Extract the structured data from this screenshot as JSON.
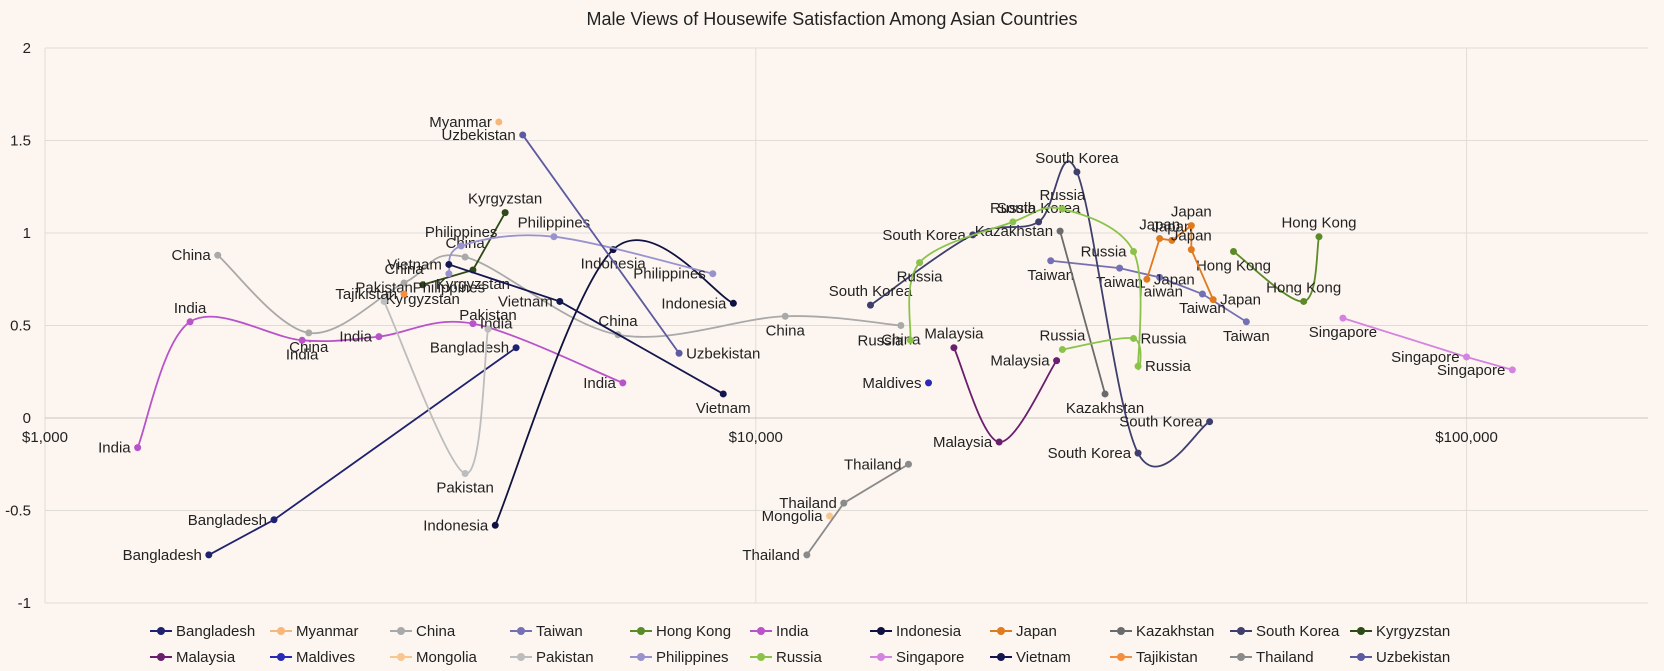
{
  "chart_data": {
    "type": "scatter",
    "title": "Male Views of Housewife Satisfaction Among Asian Countries",
    "xscale": "log",
    "xlim": [
      1000,
      180000
    ],
    "ylim": [
      -1,
      2
    ],
    "xticks": [
      {
        "v": 1000,
        "label": "$1,000"
      },
      {
        "v": 10000,
        "label": "$10,000"
      },
      {
        "v": 100000,
        "label": "$100,000"
      }
    ],
    "yticks": [
      {
        "v": -1,
        "label": "-1"
      },
      {
        "v": -0.5,
        "label": "-0.5"
      },
      {
        "v": 0,
        "label": "0"
      },
      {
        "v": 0.5,
        "label": "0.5"
      },
      {
        "v": 1,
        "label": "1"
      },
      {
        "v": 1.5,
        "label": "1.5"
      },
      {
        "v": 2,
        "label": "2"
      }
    ],
    "series": [
      {
        "name": "Bangladesh",
        "color": "#1f2270",
        "smooth": false,
        "points": [
          [
            1700,
            -0.74
          ],
          [
            2100,
            -0.55
          ],
          [
            4600,
            0.38
          ]
        ],
        "labels": [
          "Bangladesh",
          "Bangladesh",
          "Bangladesh"
        ],
        "label_side": [
          "left",
          "left",
          "left"
        ]
      },
      {
        "name": "Myanmar",
        "color": "#f7b77a",
        "smooth": false,
        "points": [
          [
            4350,
            1.6
          ]
        ],
        "labels": [
          "Myanmar"
        ],
        "label_side": [
          "left"
        ]
      },
      {
        "name": "China",
        "color": "#a9a9a9",
        "smooth": true,
        "points": [
          [
            1750,
            0.88
          ],
          [
            2350,
            0.46
          ],
          [
            3200,
            0.73
          ],
          [
            3900,
            0.87
          ],
          [
            6400,
            0.45
          ],
          [
            11000,
            0.55
          ],
          [
            16000,
            0.5
          ]
        ],
        "labels": [
          "China",
          "China",
          "China",
          "China",
          "China",
          "China",
          "China"
        ],
        "label_side": [
          "left",
          "below",
          "above",
          "above",
          "above",
          "below",
          "below"
        ]
      },
      {
        "name": "Taiwan",
        "color": "#7570b3",
        "smooth": false,
        "points": [
          [
            26000,
            0.85
          ],
          [
            32500,
            0.81
          ],
          [
            37000,
            0.76
          ],
          [
            42500,
            0.67
          ],
          [
            49000,
            0.52
          ]
        ],
        "labels": [
          "Taiwan",
          "Taiwan",
          "Taiwan",
          "Taiwan",
          "Taiwan"
        ],
        "label_side": [
          "below",
          "below",
          "below",
          "below",
          "below"
        ]
      },
      {
        "name": "Hong Kong",
        "color": "#5b8a28",
        "smooth": true,
        "points": [
          [
            47000,
            0.9
          ],
          [
            59000,
            0.63
          ],
          [
            62000,
            0.98
          ]
        ],
        "labels": [
          "Hong Kong",
          "Hong Kong",
          "Hong Kong"
        ],
        "label_side": [
          "below",
          "above",
          "above"
        ]
      },
      {
        "name": "India",
        "color": "#b853c9",
        "smooth": true,
        "points": [
          [
            1350,
            -0.16
          ],
          [
            1600,
            0.52
          ],
          [
            2300,
            0.42
          ],
          [
            2950,
            0.44
          ],
          [
            4000,
            0.51
          ],
          [
            6500,
            0.19
          ]
        ],
        "labels": [
          "India",
          "India",
          "India",
          "India",
          "India",
          "India"
        ],
        "label_side": [
          "left",
          "above",
          "below",
          "left",
          "right",
          "left"
        ]
      },
      {
        "name": "Indonesia",
        "color": "#0f1240",
        "smooth": true,
        "points": [
          [
            4300,
            -0.58
          ],
          [
            6300,
            0.91
          ],
          [
            9300,
            0.62
          ]
        ],
        "labels": [
          "Indonesia",
          "Indonesia",
          "Indonesia"
        ],
        "label_side": [
          "left",
          "below",
          "left"
        ]
      },
      {
        "name": "Japan",
        "color": "#e07a1f",
        "smooth": false,
        "points": [
          [
            35500,
            0.75
          ],
          [
            37000,
            0.97
          ],
          [
            38500,
            0.96
          ],
          [
            41000,
            1.04
          ],
          [
            41000,
            0.91
          ],
          [
            44000,
            0.64
          ]
        ],
        "labels": [
          "Japan",
          "Japan",
          "Japan",
          "Japan",
          "Japan",
          "Japan"
        ],
        "label_side": [
          "right",
          "above",
          "above",
          "above",
          "above",
          "right"
        ]
      },
      {
        "name": "Kazakhstan",
        "color": "#6b6b6b",
        "smooth": false,
        "points": [
          [
            26800,
            1.01
          ],
          [
            31000,
            0.13
          ]
        ],
        "labels": [
          "Kazakhstan",
          "Kazakhstan"
        ],
        "label_side": [
          "left",
          "below"
        ]
      },
      {
        "name": "South Korea",
        "color": "#3f3f6e",
        "smooth": true,
        "points": [
          [
            14500,
            0.61
          ],
          [
            20200,
            0.99
          ],
          [
            25000,
            1.06
          ],
          [
            28300,
            1.33
          ],
          [
            34500,
            -0.19
          ],
          [
            43500,
            -0.02
          ]
        ],
        "labels": [
          "South Korea",
          "South Korea",
          "South Korea",
          "South Korea",
          "South Korea",
          "South Korea"
        ],
        "label_side": [
          "above",
          "left",
          "above",
          "above",
          "left",
          "left"
        ]
      },
      {
        "name": "Kyrgyzstan",
        "color": "#2f4a19",
        "smooth": false,
        "points": [
          [
            3400,
            0.72
          ],
          [
            4000,
            0.8
          ],
          [
            4440,
            1.11
          ]
        ],
        "labels": [
          "Kyrgyzstan",
          "Kyrgyzstan",
          "Kyrgyzstan"
        ],
        "label_side": [
          "below",
          "below",
          "above"
        ]
      },
      {
        "name": "Malaysia",
        "color": "#6a1f6e",
        "smooth": true,
        "points": [
          [
            19000,
            0.38
          ],
          [
            22000,
            -0.13
          ],
          [
            26500,
            0.31
          ]
        ],
        "labels": [
          "Malaysia",
          "Malaysia",
          "Malaysia"
        ],
        "label_side": [
          "above",
          "left",
          "left"
        ]
      },
      {
        "name": "Maldives",
        "color": "#2a2ab8",
        "smooth": false,
        "points": [
          [
            17500,
            0.19
          ]
        ],
        "labels": [
          "Maldives"
        ],
        "label_side": [
          "left"
        ]
      },
      {
        "name": "Mongolia",
        "color": "#f9c78e",
        "smooth": false,
        "points": [
          [
            12700,
            -0.53
          ]
        ],
        "labels": [
          "Mongolia"
        ],
        "label_side": [
          "left"
        ]
      },
      {
        "name": "Pakistan",
        "color": "#bdbdbd",
        "smooth": true,
        "points": [
          [
            3000,
            0.63
          ],
          [
            3900,
            -0.3
          ],
          [
            4200,
            0.48
          ]
        ],
        "labels": [
          "Pakistan",
          "Pakistan",
          "Pakistan"
        ],
        "label_side": [
          "above",
          "below",
          "above"
        ]
      },
      {
        "name": "Philippines",
        "color": "#9892cf",
        "smooth": true,
        "points": [
          [
            3700,
            0.78
          ],
          [
            3850,
            0.93
          ],
          [
            5200,
            0.98
          ],
          [
            8700,
            0.78
          ]
        ],
        "labels": [
          "Philippines",
          "Philippines",
          "Philippines",
          "Philippines"
        ],
        "label_side": [
          "below",
          "above",
          "above",
          "left"
        ]
      },
      {
        "name": "Russia",
        "color": "#8bc34a",
        "smooth": true,
        "points": [
          [
            16500,
            0.42
          ],
          [
            17000,
            0.84
          ],
          [
            23000,
            1.06
          ],
          [
            27000,
            1.13
          ],
          [
            34000,
            0.9
          ],
          [
            34500,
            0.28
          ],
          [
            34000,
            0.43
          ],
          [
            27000,
            0.37
          ]
        ],
        "labels": [
          "Russia",
          "Russia",
          "Russia",
          "Russia",
          "Russia",
          "Russia",
          "Russia",
          "Russia"
        ],
        "label_side": [
          "left",
          "below",
          "above",
          "above",
          "left",
          "right",
          "right",
          "above"
        ]
      },
      {
        "name": "Singapore",
        "color": "#d583e0",
        "smooth": false,
        "points": [
          [
            67000,
            0.54
          ],
          [
            100000,
            0.33
          ],
          [
            116000,
            0.26
          ]
        ],
        "labels": [
          "Singapore",
          "Singapore",
          "Singapore"
        ],
        "label_side": [
          "below",
          "left",
          "left"
        ]
      },
      {
        "name": "Vietnam",
        "color": "#14164f",
        "smooth": false,
        "points": [
          [
            3700,
            0.83
          ],
          [
            5300,
            0.63
          ],
          [
            9000,
            0.13
          ]
        ],
        "labels": [
          "Vietnam",
          "Vietnam",
          "Vietnam"
        ],
        "label_side": [
          "left",
          "left",
          "below"
        ]
      },
      {
        "name": "Tajikistan",
        "color": "#f58f3f",
        "smooth": false,
        "points": [
          [
            3200,
            0.67
          ]
        ],
        "labels": [
          "Tajikistan"
        ],
        "label_side": [
          "left"
        ]
      },
      {
        "name": "Thailand",
        "color": "#8a8a8a",
        "smooth": false,
        "points": [
          [
            11800,
            -0.74
          ],
          [
            13300,
            -0.46
          ],
          [
            16400,
            -0.25
          ]
        ],
        "labels": [
          "Thailand",
          "Thailand",
          "Thailand"
        ],
        "label_side": [
          "left",
          "left",
          "left"
        ]
      },
      {
        "name": "Uzbekistan",
        "color": "#5c5aa0",
        "smooth": false,
        "points": [
          [
            4700,
            1.53
          ],
          [
            7800,
            0.35
          ]
        ],
        "labels": [
          "Uzbekistan",
          "Uzbekistan"
        ],
        "label_side": [
          "left",
          "right"
        ]
      }
    ]
  }
}
